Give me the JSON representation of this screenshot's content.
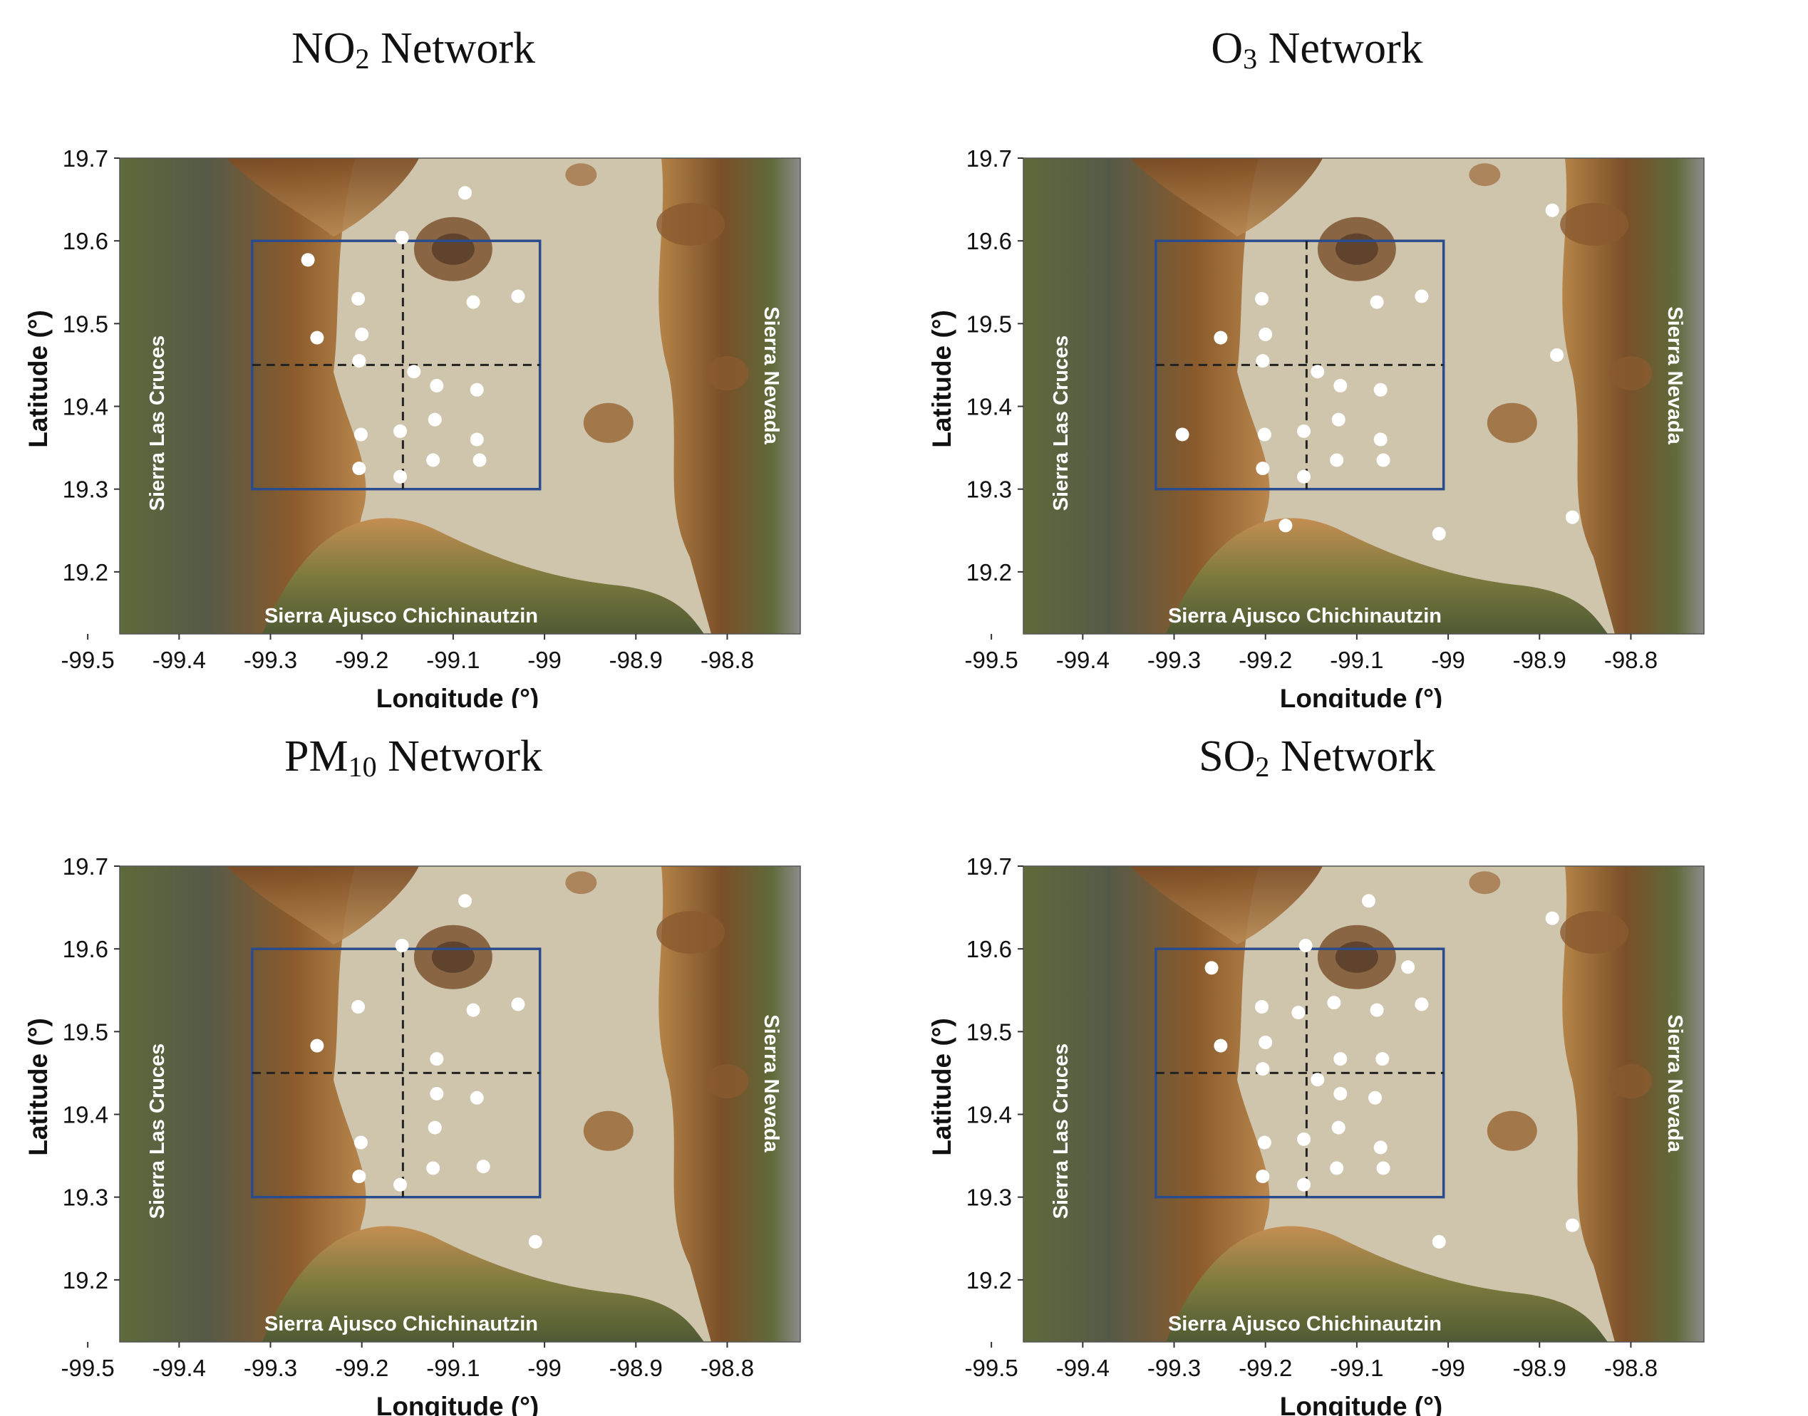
{
  "panels": [
    {
      "title_parts": [
        "NO",
        "2",
        " Network"
      ],
      "stations": [
        [
          -99.087,
          19.658
        ],
        [
          -99.156,
          19.604
        ],
        [
          -99.259,
          19.577
        ],
        [
          -99.204,
          19.53
        ],
        [
          -99.078,
          19.526
        ],
        [
          -99.029,
          19.533
        ],
        [
          -99.249,
          19.483
        ],
        [
          -99.2,
          19.487
        ],
        [
          -99.203,
          19.455
        ],
        [
          -99.143,
          19.442
        ],
        [
          -99.118,
          19.425
        ],
        [
          -99.074,
          19.42
        ],
        [
          -99.12,
          19.384
        ],
        [
          -99.201,
          19.366
        ],
        [
          -99.158,
          19.37
        ],
        [
          -99.074,
          19.36
        ],
        [
          -99.071,
          19.335
        ],
        [
          -99.122,
          19.335
        ],
        [
          -99.203,
          19.325
        ],
        [
          -99.158,
          19.315
        ]
      ]
    },
    {
      "title_parts": [
        "O",
        "3",
        " Network"
      ],
      "stations": [
        [
          -98.886,
          19.637
        ],
        [
          -99.204,
          19.53
        ],
        [
          -99.078,
          19.526
        ],
        [
          -99.029,
          19.533
        ],
        [
          -99.249,
          19.483
        ],
        [
          -99.2,
          19.487
        ],
        [
          -99.203,
          19.455
        ],
        [
          -99.143,
          19.442
        ],
        [
          -99.118,
          19.425
        ],
        [
          -99.074,
          19.42
        ],
        [
          -98.881,
          19.462
        ],
        [
          -99.12,
          19.384
        ],
        [
          -99.291,
          19.366
        ],
        [
          -99.201,
          19.366
        ],
        [
          -99.158,
          19.37
        ],
        [
          -99.074,
          19.36
        ],
        [
          -99.071,
          19.335
        ],
        [
          -99.122,
          19.335
        ],
        [
          -99.203,
          19.325
        ],
        [
          -99.158,
          19.315
        ],
        [
          -99.178,
          19.256
        ],
        [
          -99.01,
          19.246
        ],
        [
          -98.864,
          19.266
        ]
      ]
    },
    {
      "title_parts": [
        "PM",
        "10",
        " Network"
      ],
      "stations": [
        [
          -99.087,
          19.658
        ],
        [
          -99.156,
          19.604
        ],
        [
          -99.204,
          19.53
        ],
        [
          -99.078,
          19.526
        ],
        [
          -99.029,
          19.533
        ],
        [
          -99.249,
          19.483
        ],
        [
          -99.118,
          19.467
        ],
        [
          -99.118,
          19.425
        ],
        [
          -99.074,
          19.42
        ],
        [
          -99.12,
          19.384
        ],
        [
          -99.201,
          19.366
        ],
        [
          -99.067,
          19.337
        ],
        [
          -99.122,
          19.335
        ],
        [
          -99.203,
          19.325
        ],
        [
          -99.158,
          19.315
        ],
        [
          -99.01,
          19.246
        ]
      ]
    },
    {
      "title_parts": [
        "SO",
        "2",
        " Network"
      ],
      "stations": [
        [
          -99.087,
          19.658
        ],
        [
          -99.156,
          19.604
        ],
        [
          -99.259,
          19.577
        ],
        [
          -99.044,
          19.578
        ],
        [
          -98.886,
          19.637
        ],
        [
          -99.204,
          19.53
        ],
        [
          -99.164,
          19.523
        ],
        [
          -99.125,
          19.535
        ],
        [
          -99.078,
          19.526
        ],
        [
          -99.029,
          19.533
        ],
        [
          -99.249,
          19.483
        ],
        [
          -99.2,
          19.487
        ],
        [
          -99.118,
          19.467
        ],
        [
          -99.072,
          19.467
        ],
        [
          -99.203,
          19.455
        ],
        [
          -99.143,
          19.442
        ],
        [
          -99.118,
          19.425
        ],
        [
          -99.08,
          19.42
        ],
        [
          -99.12,
          19.384
        ],
        [
          -99.201,
          19.366
        ],
        [
          -99.158,
          19.37
        ],
        [
          -99.074,
          19.36
        ],
        [
          -99.071,
          19.335
        ],
        [
          -99.122,
          19.335
        ],
        [
          -99.203,
          19.325
        ],
        [
          -99.158,
          19.315
        ],
        [
          -99.01,
          19.246
        ],
        [
          -98.864,
          19.266
        ]
      ]
    }
  ],
  "x_ticks": [
    "-99.5",
    "-99.4",
    "-99.3",
    "-99.2",
    "-99.1",
    "-99",
    "-98.9",
    "-98.8"
  ],
  "y_ticks": [
    "19.7",
    "19.6",
    "19.5",
    "19.4",
    "19.3",
    "19.2"
  ],
  "x_label": "Longitude (°)",
  "y_label": "Latitude (°)",
  "regions": {
    "west": "Sierra Las Cruces",
    "east": "Sierra Nevada",
    "south": "Sierra Ajusco Chichinautzin"
  },
  "extent": {
    "lon": [
      -99.465,
      -98.72
    ],
    "lat": [
      19.125,
      19.7
    ]
  },
  "study_box": {
    "lon": [
      -99.32,
      -99.005
    ],
    "lat": [
      19.3,
      19.6
    ],
    "divider_lon": -99.155,
    "divider_lat": 19.45
  },
  "colors": {
    "box": "#2b4c8c",
    "divider": "#222222",
    "station": "#ffffff",
    "valley": "#cfc5ad",
    "mountain_brown": "#8a5a2b",
    "mountain_green": "#5d6b3a",
    "mountain_gray": "#7a7a76"
  }
}
